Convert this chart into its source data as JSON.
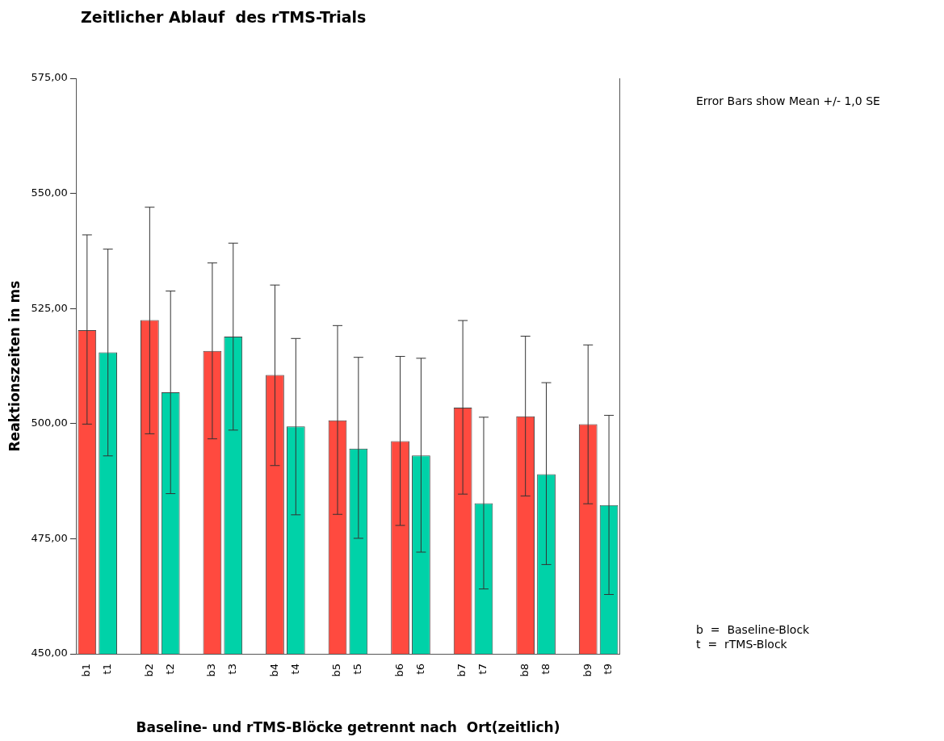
{
  "chart_data": {
    "type": "bar",
    "title": "Zeitlicher Ablauf  des rTMS-Trials",
    "xlabel": "Baseline- und rTMS-Blöcke getrennt nach  Ort(zeitlich)",
    "ylabel": "Reaktionszeiten in ms",
    "categories": [
      "b1",
      "t1",
      null,
      "b2",
      "t2",
      null,
      "b3",
      "t3",
      null,
      "b4",
      "t4",
      null,
      "b5",
      "t5",
      null,
      "b6",
      "t6",
      null,
      "b7",
      "t7",
      null,
      "b8",
      "t8",
      null,
      "b9",
      "t9"
    ],
    "values": [
      520.3,
      515.5,
      null,
      522.5,
      506.8,
      null,
      515.8,
      518.9,
      null,
      510.6,
      499.4,
      null,
      500.7,
      494.6,
      null,
      496.2,
      493.1,
      null,
      503.5,
      482.7,
      null,
      501.6,
      489.0,
      null,
      499.9,
      482.3
    ],
    "errors": [
      [
        499.9,
        541.0
      ],
      [
        493.0,
        537.9
      ],
      null,
      [
        497.8,
        547.0
      ],
      [
        484.8,
        528.8
      ],
      null,
      [
        496.7,
        534.9
      ],
      [
        498.6,
        539.2
      ],
      null,
      [
        490.9,
        530.1
      ],
      [
        480.2,
        518.5
      ],
      null,
      [
        480.3,
        521.3
      ],
      [
        475.1,
        514.4
      ],
      null,
      [
        477.9,
        514.6
      ],
      [
        472.1,
        514.2
      ],
      null,
      [
        484.7,
        522.4
      ],
      [
        464.1,
        501.4
      ],
      null,
      [
        484.3,
        519.0
      ],
      [
        469.4,
        508.9
      ],
      null,
      [
        482.6,
        517.1
      ],
      [
        462.9,
        501.8
      ]
    ],
    "colors": [
      "#ff4a3f",
      "#00d2a8",
      "#ffffff",
      "#ff4a3f",
      "#00d2a8",
      "#ffffff",
      "#ff4a3f",
      "#00d2a8",
      "#ffffff",
      "#ff4a3f",
      "#00d2a8",
      "#ffffff",
      "#ff4a3f",
      "#00d2a8",
      "#ffffff",
      "#ff4a3f",
      "#00d2a8",
      "#ffffff",
      "#ff4a3f",
      "#00d2a8",
      "#ffffff",
      "#ff4a3f",
      "#00d2a8",
      "#ffffff",
      "#ff4a3f",
      "#00d2a8"
    ],
    "ylim": [
      450,
      575
    ],
    "yticks": [
      {
        "value": 450,
        "label": "450,00"
      },
      {
        "value": 475,
        "label": "475,00"
      },
      {
        "value": 500,
        "label": "500,00"
      },
      {
        "value": 525,
        "label": "525,00"
      },
      {
        "value": 550,
        "label": "550,00"
      },
      {
        "value": 575,
        "label": "575,00"
      }
    ],
    "grid": false,
    "legend": false,
    "annotations": [
      "Error Bars show Mean +/- 1,0 SE",
      "b  =  Baseline-Block",
      "t  =  rTMS-Block"
    ]
  }
}
